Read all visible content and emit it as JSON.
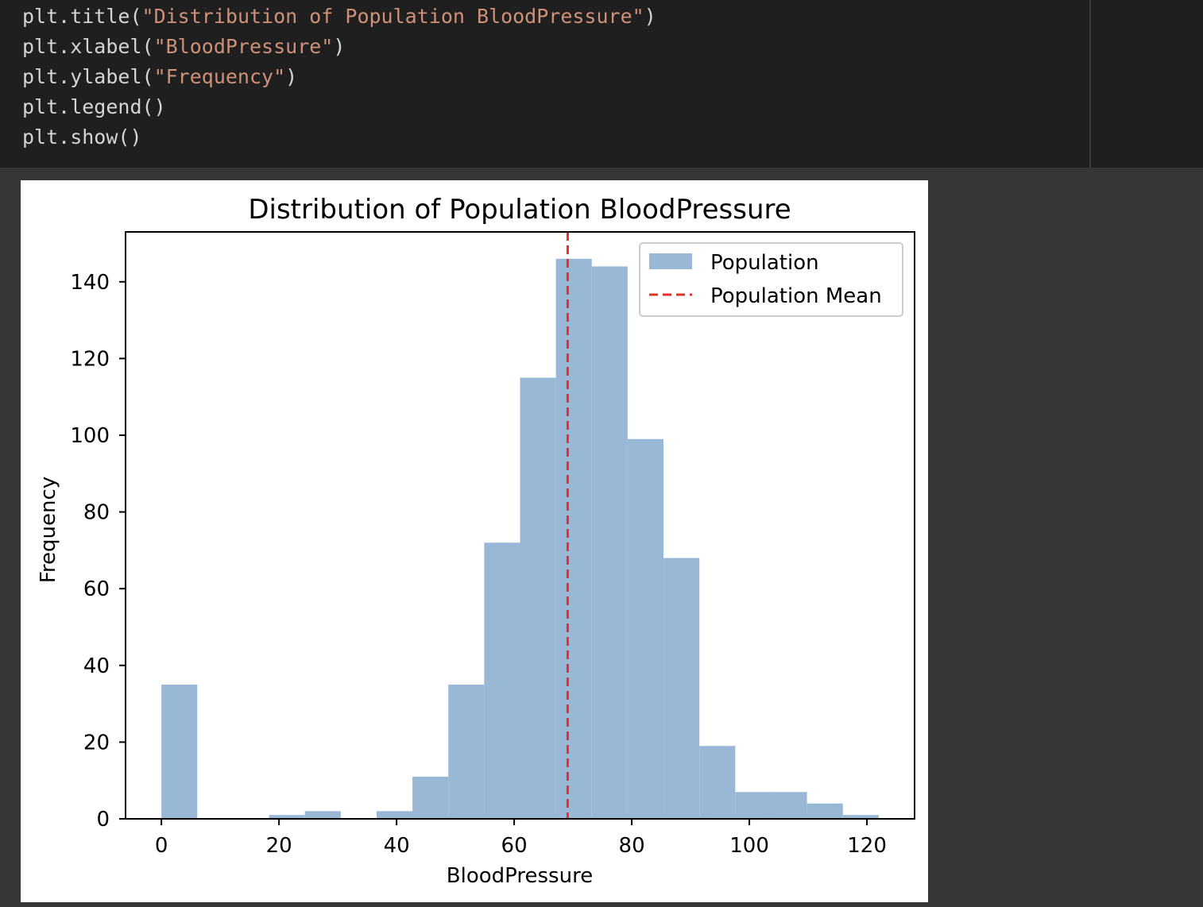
{
  "code": {
    "lines": [
      {
        "fn": "plt.title",
        "arg": "\"Distribution of Population BloodPressure\""
      },
      {
        "fn": "plt.xlabel",
        "arg": "\"BloodPressure\""
      },
      {
        "fn": "plt.ylabel",
        "arg": "\"Frequency\""
      },
      {
        "fn": "plt.legend",
        "arg": ""
      },
      {
        "fn": "plt.show",
        "arg": ""
      }
    ]
  },
  "colors": {
    "bar": "#98b8d6",
    "mean_line": "#e3322b",
    "code_bg": "#1f1f1f",
    "page_bg": "#363636",
    "string": "#ce9178"
  },
  "chart_data": {
    "type": "bar",
    "title": "Distribution of Population BloodPressure",
    "xlabel": "BloodPressure",
    "ylabel": "Frequency",
    "xlim": [
      -6.1,
      128.1
    ],
    "ylim": [
      0,
      153
    ],
    "xticks": [
      0,
      20,
      40,
      60,
      80,
      100,
      120
    ],
    "yticks": [
      0,
      20,
      40,
      60,
      80,
      100,
      120,
      140
    ],
    "bin_width": 6.1,
    "bins": [
      {
        "x0": 0.0,
        "count": 35
      },
      {
        "x0": 6.1,
        "count": 0
      },
      {
        "x0": 12.2,
        "count": 0
      },
      {
        "x0": 18.3,
        "count": 1
      },
      {
        "x0": 24.4,
        "count": 2
      },
      {
        "x0": 30.5,
        "count": 0
      },
      {
        "x0": 36.6,
        "count": 2
      },
      {
        "x0": 42.7,
        "count": 11
      },
      {
        "x0": 48.8,
        "count": 35
      },
      {
        "x0": 54.9,
        "count": 72
      },
      {
        "x0": 61.0,
        "count": 115
      },
      {
        "x0": 67.1,
        "count": 146
      },
      {
        "x0": 73.2,
        "count": 144
      },
      {
        "x0": 79.3,
        "count": 99
      },
      {
        "x0": 85.4,
        "count": 68
      },
      {
        "x0": 91.5,
        "count": 19
      },
      {
        "x0": 97.6,
        "count": 7
      },
      {
        "x0": 103.7,
        "count": 7
      },
      {
        "x0": 109.8,
        "count": 4
      },
      {
        "x0": 115.9,
        "count": 1
      }
    ],
    "mean": 69.1,
    "legend": {
      "location": "top-right",
      "entries": [
        "Population",
        "Population Mean"
      ]
    },
    "grid": false
  }
}
